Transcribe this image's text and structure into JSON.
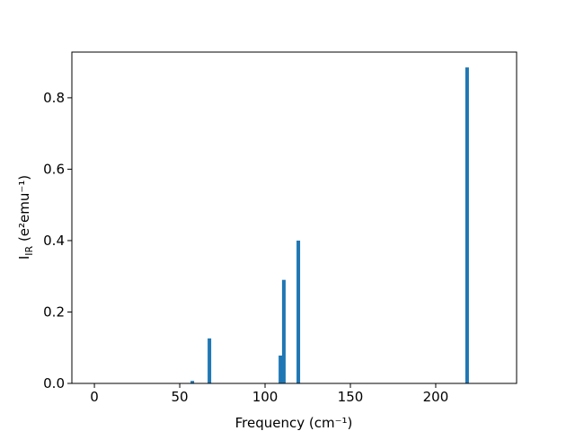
{
  "chart_data": {
    "type": "bar",
    "xlabel": "Frequency (cm⁻¹)",
    "ylabel": {
      "main": "I",
      "sub": "IR",
      "rest": " (e²emu⁻¹)"
    },
    "x": [
      57.4,
      67.4,
      109,
      111,
      119.5,
      218.4
    ],
    "values": [
      0.007,
      0.126,
      0.078,
      0.29,
      0.4,
      0.885
    ],
    "color": "#1f77b4",
    "xlim": [
      -13.2,
      247.4
    ],
    "ylim": [
      0,
      0.928
    ],
    "xticks": [
      0,
      50,
      100,
      150,
      200
    ],
    "yticks": [
      {
        "value": 0,
        "label": "0.0"
      },
      0.2,
      0.4,
      0.6,
      0.8
    ]
  }
}
